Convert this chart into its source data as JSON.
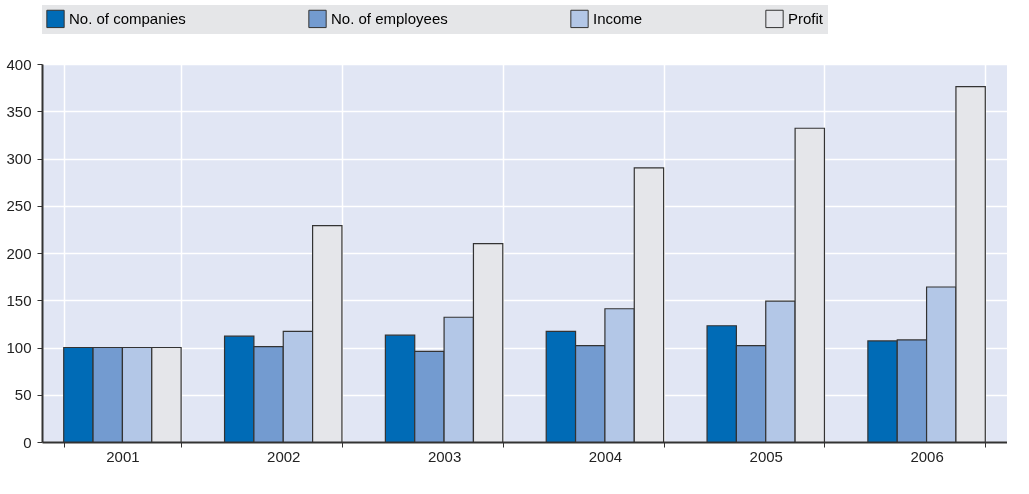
{
  "chart_data": {
    "type": "bar",
    "categories": [
      "2001",
      "2002",
      "2003",
      "2004",
      "2005",
      "2006"
    ],
    "series": [
      {
        "name": "No. of companies",
        "color": "#006bb6",
        "values": [
          100,
          112,
          113,
          117,
          123,
          107
        ]
      },
      {
        "name": "No. of employees",
        "color": "#739bd0",
        "values": [
          100,
          101,
          96,
          102,
          102,
          108
        ]
      },
      {
        "name": "Income",
        "color": "#b3c7e7",
        "values": [
          100,
          117,
          132,
          141,
          149,
          164
        ]
      },
      {
        "name": "Profit",
        "color": "#e5e6ea",
        "values": [
          100,
          229,
          210,
          290,
          332,
          376
        ]
      }
    ],
    "ylim": [
      0,
      400
    ],
    "yticks": [
      0,
      50,
      100,
      150,
      200,
      250,
      300,
      350,
      400
    ],
    "grid": true,
    "legend": "top"
  }
}
